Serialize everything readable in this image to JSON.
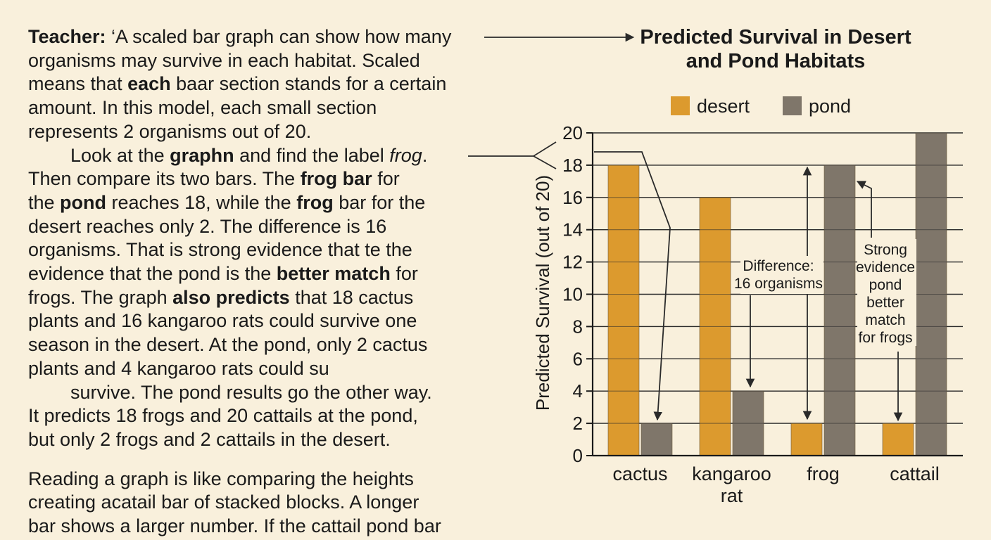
{
  "text": {
    "paragraphs": [
      [
        [
          {
            "t": "Teacher:",
            "b": true
          },
          {
            "t": " ‘A scaled bar graph can show how many"
          }
        ],
        [
          {
            "t": "organisms may survive in each habitat. Scaled"
          }
        ],
        [
          {
            "t": "means that "
          },
          {
            "t": "each",
            "b": true
          },
          {
            "t": " baar section stands for a certain"
          }
        ],
        [
          {
            "t": "amount. In this model, each small section"
          }
        ],
        [
          {
            "t": "represents 2 organisms out of 20."
          }
        ]
      ],
      [
        [
          {
            "t": "Look at the "
          },
          {
            "t": "graphn",
            "b": true
          },
          {
            "t": " and find the label "
          },
          {
            "t": "frog",
            "i": true
          },
          {
            "t": "."
          }
        ],
        [
          {
            "t": "Then compare its two bars. The "
          },
          {
            "t": "frog bar",
            "b": true
          },
          {
            "t": " for"
          }
        ],
        [
          {
            "t": "the "
          },
          {
            "t": "pond",
            "b": true
          },
          {
            "t": " reaches 18, while the "
          },
          {
            "t": "frog",
            "b": true
          },
          {
            "t": " bar for the"
          }
        ],
        [
          {
            "t": "desert reaches only 2. The difference is 16"
          }
        ],
        [
          {
            "t": "organisms. That is strong evidence that te the"
          }
        ],
        [
          {
            "t": "evidence that the pond is the "
          },
          {
            "t": "better match",
            "b": true
          },
          {
            "t": " for"
          }
        ],
        [
          {
            "t": "frogs. The graph "
          },
          {
            "t": "also predicts",
            "b": true
          },
          {
            "t": " that 18 cactus"
          }
        ],
        [
          {
            "t": "plants and 16 kangaroo rats could survive one"
          }
        ],
        [
          {
            "t": "season in the desert. At the pond, only 2 cactus"
          }
        ],
        [
          {
            "t": "plants and 4 kangaroo rats could su"
          }
        ]
      ],
      [
        [
          {
            "t": "survive. The pond results go the other way."
          }
        ],
        [
          {
            "t": "It predicts 18 frogs and 20 cattails at the pond,"
          }
        ],
        [
          {
            "t": "but only 2 frogs and 2 cattails in the desert."
          }
        ]
      ],
      [
        [
          {
            "t": "Reading a graph is like comparing the heights"
          }
        ],
        [
          {
            "t": "creating acatail bar of stacked blocks. A longer"
          }
        ],
        [
          {
            "t": "bar shows a larger number. If the cattail pond bar"
          }
        ]
      ]
    ]
  },
  "chart_data": {
    "type": "bar",
    "title": [
      "Predicted Survival in Desert",
      "and Pond Habitats"
    ],
    "xlabel": "",
    "ylabel": "Predicted Survival (out of 20)",
    "ylim": [
      0,
      20
    ],
    "yticks": [
      0,
      2,
      4,
      6,
      8,
      10,
      12,
      14,
      16,
      18,
      20
    ],
    "grid": true,
    "legend_position": "top",
    "categories": [
      [
        "cactus"
      ],
      [
        "kangaroo",
        "rat"
      ],
      [
        "frog"
      ],
      [
        "cattail"
      ]
    ],
    "series": [
      {
        "name": "desert",
        "color": "#dc9a2e",
        "values": [
          18,
          16,
          2,
          2
        ]
      },
      {
        "name": "pond",
        "color": "#7f766a",
        "values": [
          2,
          4,
          18,
          20
        ]
      }
    ],
    "annotations": [
      {
        "lines": [
          "Difference:",
          "16 organisms"
        ]
      },
      {
        "lines": [
          "Strong",
          "evidence",
          "pond",
          "better",
          "match",
          "for frogs"
        ]
      }
    ]
  }
}
